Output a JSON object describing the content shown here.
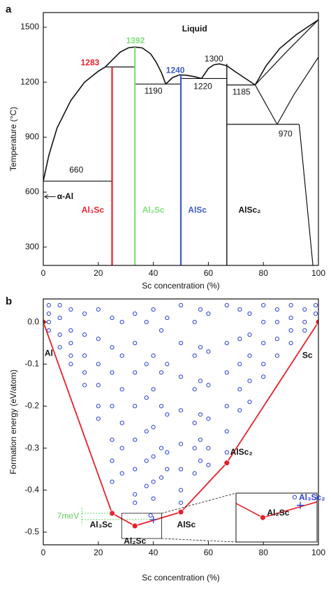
{
  "chart_data": [
    {
      "type": "line",
      "panel": "a",
      "xlabel": "Sc concentration (%)",
      "ylabel": "Temperature (°C)",
      "xlim": [
        0,
        100
      ],
      "ylim": [
        200,
        1580
      ],
      "xticks": [
        0,
        20,
        40,
        60,
        80,
        100
      ],
      "yticks": [
        300,
        600,
        900,
        1200,
        1500
      ],
      "series": [
        {
          "color": "#111111",
          "width": 1.6,
          "x": [
            0,
            2,
            5,
            10,
            15,
            20,
            22.5
          ],
          "values": [
            660,
            800,
            950,
            1100,
            1200,
            1260,
            1283
          ]
        },
        {
          "color": "#111111",
          "width": 1.6,
          "x": [
            22.5,
            25,
            28,
            31,
            33.3,
            36,
            39,
            41,
            43,
            44.5
          ],
          "values": [
            1283,
            1320,
            1365,
            1388,
            1392,
            1387,
            1355,
            1310,
            1250,
            1190
          ]
        },
        {
          "color": "#111111",
          "width": 1.6,
          "x": [
            44.5,
            47,
            49.5,
            52,
            55,
            57.5
          ],
          "values": [
            1190,
            1225,
            1240,
            1238,
            1230,
            1220
          ]
        },
        {
          "color": "#111111",
          "width": 1.6,
          "x": [
            57.5,
            60,
            62,
            64,
            66.7,
            70,
            74,
            77
          ],
          "values": [
            1220,
            1275,
            1295,
            1300,
            1290,
            1255,
            1215,
            1185
          ]
        },
        {
          "color": "#111111",
          "width": 1.6,
          "x": [
            77,
            81,
            86,
            92,
            100
          ],
          "values": [
            1185,
            1290,
            1385,
            1460,
            1541
          ]
        },
        {
          "color": "#111111",
          "width": 1.2,
          "x": [
            100,
            88,
            77
          ],
          "values": [
            1541,
            1360,
            1185
          ]
        },
        {
          "color": "#111111",
          "width": 1.2,
          "x": [
            77,
            85
          ],
          "values": [
            1185,
            970
          ]
        },
        {
          "color": "#111111",
          "width": 1.2,
          "x": [
            85,
            91,
            100
          ],
          "values": [
            970,
            1130,
            1337
          ]
        },
        {
          "color": "#111111",
          "width": 1.2,
          "x": [
            93,
            98
          ],
          "values": [
            970,
            200
          ]
        },
        {
          "color": "#111111",
          "width": 1.2,
          "x": [
            0,
            25
          ],
          "values": [
            660,
            660
          ]
        },
        {
          "color": "#111111",
          "width": 1.2,
          "x": [
            22.5,
            33.3
          ],
          "values": [
            1283,
            1283
          ]
        },
        {
          "color": "#111111",
          "width": 1.2,
          "x": [
            33.3,
            50
          ],
          "values": [
            1190,
            1190
          ]
        },
        {
          "color": "#111111",
          "width": 1.2,
          "x": [
            50,
            66.7
          ],
          "values": [
            1220,
            1220
          ]
        },
        {
          "color": "#111111",
          "width": 1.2,
          "x": [
            66.7,
            77
          ],
          "values": [
            1185,
            1185
          ]
        },
        {
          "color": "#111111",
          "width": 1.2,
          "x": [
            66.7,
            93
          ],
          "values": [
            970,
            970
          ]
        },
        {
          "color": "#e8202a",
          "width": 2.2,
          "x": [
            25,
            25
          ],
          "values": [
            1283,
            200
          ]
        },
        {
          "color": "#7ee07a",
          "width": 2.2,
          "x": [
            33.3,
            33.3
          ],
          "values": [
            1392,
            200
          ]
        },
        {
          "color": "#3b5cc9",
          "width": 2.2,
          "x": [
            50,
            50
          ],
          "values": [
            1240,
            200
          ]
        },
        {
          "color": "#111111",
          "width": 1.4,
          "x": [
            66.7,
            66.7
          ],
          "values": [
            1300,
            200
          ]
        }
      ],
      "annotations": [
        {
          "text": "Liquid",
          "color": "#111111"
        },
        {
          "text": "1283",
          "color": "#e8202a"
        },
        {
          "text": "1392",
          "color": "#7ee07a"
        },
        {
          "text": "1240",
          "color": "#3b5cc9"
        },
        {
          "text": "1300",
          "color": "#111111"
        },
        {
          "text": "1190",
          "color": "#111111"
        },
        {
          "text": "1220",
          "color": "#111111"
        },
        {
          "text": "1185",
          "color": "#111111"
        },
        {
          "text": "970",
          "color": "#111111"
        },
        {
          "text": "660",
          "color": "#111111"
        },
        {
          "text": "α-Al",
          "color": "#111111"
        },
        {
          "text": "Al₃Sc",
          "color": "#e8202a"
        },
        {
          "text": "Al₂Sc",
          "color": "#7ee07a"
        },
        {
          "text": "AlSc",
          "color": "#3b5cc9"
        },
        {
          "text": "AlSc₂",
          "color": "#111111"
        }
      ]
    },
    {
      "type": "scatter",
      "panel": "b",
      "xlabel": "Sc concentration (%)",
      "ylabel": "Formation energy (eV/atom)",
      "xlim": [
        0,
        100
      ],
      "ylim": [
        -0.53,
        0.055
      ],
      "xticks": [
        0,
        20,
        40,
        60,
        80,
        100
      ],
      "yticks": [
        {
          "value": 0,
          "label": "0.0"
        },
        -0.1,
        -0.2,
        -0.3,
        -0.4,
        -0.5
      ],
      "series": [
        {
          "color": "#2a3fd6",
          "marker": "open-circle",
          "x": [
            2,
            2,
            2,
            2,
            6,
            6,
            6,
            6,
            10,
            10,
            10,
            10,
            10,
            15,
            15,
            15,
            15,
            15,
            20,
            20,
            20,
            20,
            20,
            20,
            25,
            25,
            25,
            25,
            25,
            25,
            25,
            28.6,
            28.6,
            28.6,
            28.6,
            28.6,
            28.6,
            33.3,
            33.3,
            33.3,
            33.3,
            33.3,
            33.3,
            33.3,
            33.3,
            37.5,
            37.5,
            37.5,
            37.5,
            37.5,
            37.5,
            40,
            40,
            40,
            40,
            40,
            40,
            40,
            42.9,
            42.9,
            42.9,
            42.9,
            42.9,
            45,
            45,
            45,
            45,
            45,
            50,
            50,
            50,
            50,
            50,
            50,
            50,
            50,
            55,
            55,
            55,
            55,
            55,
            55,
            57.1,
            57.1,
            57.1,
            57.1,
            57.1,
            57.1,
            60,
            60,
            60,
            60,
            60,
            60,
            66.7,
            66.7,
            66.7,
            66.7,
            66.7,
            66.7,
            71.4,
            71.4,
            71.4,
            71.4,
            71.4,
            75,
            75,
            75,
            75,
            75,
            80,
            80,
            80,
            80,
            80,
            85,
            85,
            85,
            85,
            90,
            90,
            90,
            90,
            95,
            95,
            95,
            99,
            99,
            39
          ],
          "values": [
            0.04,
            0.02,
            0.0,
            -0.02,
            0.04,
            0.01,
            -0.03,
            -0.06,
            0.03,
            -0.02,
            -0.05,
            -0.08,
            -0.1,
            0.02,
            -0.03,
            -0.08,
            -0.12,
            -0.15,
            0.03,
            -0.04,
            -0.1,
            -0.15,
            -0.2,
            -0.23,
            0.01,
            -0.06,
            -0.12,
            -0.2,
            -0.28,
            -0.33,
            -0.38,
            0.0,
            -0.08,
            -0.16,
            -0.24,
            -0.3,
            -0.36,
            0.02,
            -0.05,
            -0.12,
            -0.2,
            -0.28,
            -0.35,
            -0.41,
            -0.43,
            0.0,
            -0.1,
            -0.18,
            -0.26,
            -0.33,
            -0.39,
            0.03,
            -0.08,
            -0.16,
            -0.25,
            -0.32,
            -0.38,
            -0.42,
            -0.02,
            -0.12,
            -0.2,
            -0.3,
            -0.37,
            0.01,
            -0.1,
            -0.22,
            -0.31,
            -0.35,
            0.04,
            -0.05,
            -0.13,
            -0.21,
            -0.29,
            -0.35,
            -0.4,
            -0.43,
            0.0,
            -0.08,
            -0.16,
            -0.24,
            -0.3,
            -0.36,
            0.03,
            -0.06,
            -0.14,
            -0.22,
            -0.28,
            -0.33,
            0.02,
            -0.07,
            -0.15,
            -0.23,
            -0.3,
            -0.34,
            0.04,
            -0.05,
            -0.12,
            -0.2,
            -0.26,
            -0.31,
            0.03,
            -0.04,
            -0.1,
            -0.16,
            -0.21,
            0.02,
            -0.03,
            -0.08,
            -0.14,
            -0.19,
            0.04,
            0.0,
            -0.05,
            -0.1,
            -0.13,
            0.03,
            0.0,
            -0.04,
            -0.08,
            0.04,
            0.01,
            -0.02,
            -0.05,
            0.03,
            0.0,
            -0.02,
            0.04,
            0.02,
            -0.46
          ]
        },
        {
          "color": "#e8202a",
          "marker": "dot-line",
          "x": [
            0,
            25,
            33.3,
            50,
            66.7,
            100
          ],
          "values": [
            0,
            -0.455,
            -0.485,
            -0.452,
            -0.335,
            0
          ],
          "point_labels": [
            "Al",
            "Al₃Sc",
            "Al₂Sc",
            "AlSc",
            "AlSc₂",
            "Sc"
          ]
        },
        {
          "color": "#2a3fd6",
          "marker": "plus",
          "x": [
            40
          ],
          "values": [
            -0.47
          ]
        }
      ],
      "annotations": [
        {
          "text": "7meV",
          "color": "#5fcf5a"
        }
      ],
      "inset": {
        "xlim": [
          28.5,
          43
        ],
        "ylim": [
          -0.515,
          -0.455
        ],
        "labels": [
          {
            "text": "Al₃Sc₂",
            "color": "#2a3fd6"
          },
          {
            "text": "Al₂Sc",
            "color": "#111111"
          }
        ]
      }
    }
  ]
}
